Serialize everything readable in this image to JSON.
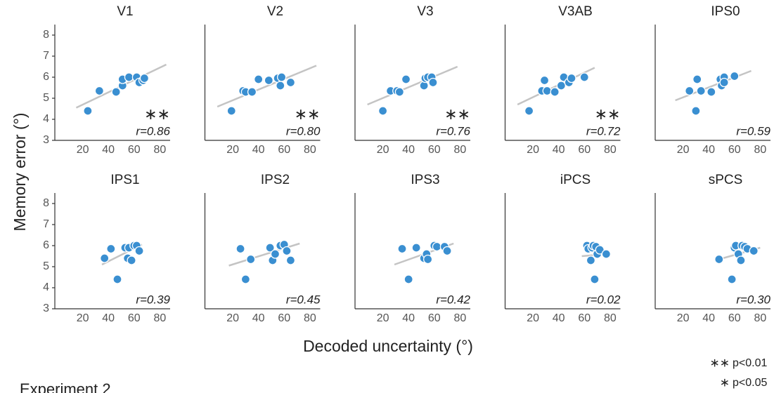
{
  "ylabel": "Memory error (°)",
  "xlabel": "Decoded uncertainty (°)",
  "legend": [
    {
      "symbol": "∗∗",
      "text": "p<0.01"
    },
    {
      "symbol": "∗",
      "text": "p<0.05"
    }
  ],
  "footer": "Experiment 2",
  "chart_data": [
    {
      "type": "scatter",
      "title": "V1",
      "x": [
        24,
        33,
        46,
        51,
        51,
        56,
        62,
        64,
        67,
        68
      ],
      "y": [
        4.4,
        5.35,
        5.3,
        5.6,
        5.9,
        6.0,
        6.0,
        5.75,
        5.85,
        5.95
      ],
      "color": "#3a8fd1",
      "fit": {
        "x": [
          15,
          85
        ],
        "y": [
          4.55,
          6.6
        ],
        "color": "#c4c4c4"
      },
      "annotation": "r=0.86",
      "significance": "∗∗",
      "xlim": [
        0,
        88
      ],
      "ylim": [
        3,
        8.5
      ],
      "xticks": [
        20,
        40,
        60,
        80
      ],
      "yticks": [
        3,
        4,
        5,
        6,
        7,
        8
      ]
    },
    {
      "type": "scatter",
      "title": "V2",
      "x": [
        19,
        28,
        30,
        35,
        40,
        48,
        55,
        57,
        58,
        65
      ],
      "y": [
        4.4,
        5.35,
        5.3,
        5.3,
        5.9,
        5.85,
        5.95,
        5.6,
        6.0,
        5.75
      ],
      "color": "#3a8fd1",
      "fit": {
        "x": [
          8,
          85
        ],
        "y": [
          4.6,
          6.55
        ],
        "color": "#c4c4c4"
      },
      "annotation": "r=0.80",
      "significance": "∗∗",
      "xlim": [
        0,
        88
      ],
      "ylim": [
        3,
        8.5
      ],
      "xticks": [
        20,
        40,
        60,
        80
      ]
    },
    {
      "type": "scatter",
      "title": "V3",
      "x": [
        20,
        26,
        31,
        33,
        38,
        52,
        53,
        55,
        58,
        59
      ],
      "y": [
        4.4,
        5.35,
        5.35,
        5.3,
        5.9,
        5.6,
        5.95,
        6.0,
        6.0,
        5.75
      ],
      "color": "#3a8fd1",
      "fit": {
        "x": [
          8,
          78
        ],
        "y": [
          4.7,
          6.5
        ],
        "color": "#c4c4c4"
      },
      "annotation": "r=0.76",
      "significance": "∗∗",
      "xlim": [
        0,
        88
      ],
      "ylim": [
        3,
        8.5
      ],
      "xticks": [
        20,
        40,
        60,
        80
      ]
    },
    {
      "type": "scatter",
      "title": "V3AB",
      "x": [
        17,
        27,
        29,
        31,
        37,
        42,
        44,
        48,
        50,
        60
      ],
      "y": [
        4.4,
        5.35,
        5.85,
        5.35,
        5.3,
        5.6,
        6.0,
        5.75,
        5.95,
        6.0
      ],
      "color": "#3a8fd1",
      "fit": {
        "x": [
          8,
          68
        ],
        "y": [
          4.7,
          6.45
        ],
        "color": "#c4c4c4"
      },
      "annotation": "r=0.72",
      "significance": "∗∗",
      "xlim": [
        0,
        88
      ],
      "ylim": [
        3,
        8.5
      ],
      "xticks": [
        20,
        40,
        60,
        80
      ]
    },
    {
      "type": "scatter",
      "title": "IPS0",
      "x": [
        25,
        30,
        31,
        34,
        42,
        49,
        50,
        52,
        52,
        60
      ],
      "y": [
        5.35,
        4.4,
        5.9,
        5.35,
        5.3,
        5.9,
        5.6,
        6.0,
        5.75,
        6.05
      ],
      "color": "#3a8fd1",
      "fit": {
        "x": [
          14,
          73
        ],
        "y": [
          4.9,
          6.3
        ],
        "color": "#c4c4c4"
      },
      "annotation": "r=0.59",
      "xlim": [
        0,
        88
      ],
      "ylim": [
        3,
        8.5
      ],
      "xticks": [
        20,
        40,
        60,
        80
      ]
    },
    {
      "type": "scatter",
      "title": "IPS1",
      "x": [
        37,
        42,
        47,
        53,
        55,
        56,
        58,
        60,
        62,
        64
      ],
      "y": [
        5.4,
        5.85,
        4.4,
        5.9,
        5.4,
        5.9,
        5.3,
        6.0,
        6.0,
        5.75
      ],
      "color": "#3a8fd1",
      "fit": {
        "x": [
          35,
          66
        ],
        "y": [
          5.1,
          6.05
        ],
        "color": "#c4c4c4"
      },
      "annotation": "r=0.39",
      "xlim": [
        0,
        88
      ],
      "ylim": [
        3,
        8.5
      ],
      "xticks": [
        20,
        40,
        60,
        80
      ],
      "yticks": [
        3,
        4,
        5,
        6,
        7,
        8
      ]
    },
    {
      "type": "scatter",
      "title": "IPS2",
      "x": [
        26,
        30,
        34,
        49,
        51,
        53,
        57,
        60,
        62,
        65
      ],
      "y": [
        5.85,
        4.4,
        5.35,
        5.9,
        5.3,
        5.6,
        6.0,
        6.05,
        5.75,
        5.3
      ],
      "color": "#3a8fd1",
      "fit": {
        "x": [
          17,
          72
        ],
        "y": [
          5.05,
          6.1
        ],
        "color": "#c4c4c4"
      },
      "annotation": "r=0.45",
      "xlim": [
        0,
        88
      ],
      "ylim": [
        3,
        8.5
      ],
      "xticks": [
        20,
        40,
        60,
        80
      ]
    },
    {
      "type": "scatter",
      "title": "IPS3",
      "x": [
        35,
        40,
        46,
        52,
        54,
        55,
        60,
        62,
        68,
        70
      ],
      "y": [
        5.85,
        4.4,
        5.9,
        5.4,
        5.6,
        5.35,
        6.0,
        5.95,
        5.95,
        5.75
      ],
      "color": "#3a8fd1",
      "fit": {
        "x": [
          29,
          75
        ],
        "y": [
          5.1,
          6.1
        ],
        "color": "#c4c4c4"
      },
      "annotation": "r=0.42",
      "xlim": [
        0,
        88
      ],
      "ylim": [
        3,
        8.5
      ],
      "xticks": [
        20,
        40,
        60,
        80
      ]
    },
    {
      "type": "scatter",
      "title": "iPCS",
      "x": [
        62,
        63,
        65,
        66,
        67,
        68,
        69,
        70,
        72,
        77
      ],
      "y": [
        6.0,
        5.85,
        5.3,
        5.9,
        6.0,
        4.4,
        5.95,
        5.6,
        5.8,
        5.6
      ],
      "color": "#3a8fd1",
      "fit": {
        "x": [
          58,
          78
        ],
        "y": [
          5.5,
          5.6
        ],
        "color": "#c4c4c4"
      },
      "annotation": "r=0.02",
      "xlim": [
        0,
        88
      ],
      "ylim": [
        3,
        8.5
      ],
      "xticks": [
        20,
        40,
        60,
        80
      ]
    },
    {
      "type": "scatter",
      "title": "sPCS",
      "x": [
        48,
        58,
        60,
        61,
        63,
        65,
        66,
        68,
        70,
        75
      ],
      "y": [
        5.35,
        4.4,
        5.9,
        6.0,
        5.6,
        5.3,
        6.0,
        5.95,
        5.85,
        5.75
      ],
      "color": "#3a8fd1",
      "fit": {
        "x": [
          48,
          80
        ],
        "y": [
          5.35,
          5.9
        ],
        "color": "#c4c4c4"
      },
      "annotation": "r=0.30",
      "xlim": [
        0,
        88
      ],
      "ylim": [
        3,
        8.5
      ],
      "xticks": [
        20,
        40,
        60,
        80
      ]
    }
  ]
}
